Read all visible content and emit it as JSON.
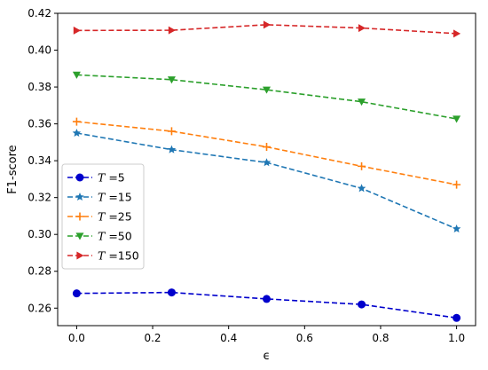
{
  "chart_data": {
    "type": "line",
    "title": "",
    "xlabel": "ϵ",
    "ylabel": "F1-score",
    "x": [
      0.0,
      0.25,
      0.5,
      0.75,
      1.0
    ],
    "xlim": [
      -0.05,
      1.05
    ],
    "ylim": [
      0.2505,
      0.42
    ],
    "xticks": [
      0.0,
      0.2,
      0.4,
      0.6,
      0.8,
      1.0
    ],
    "xtick_labels": [
      "0.0",
      "0.2",
      "0.4",
      "0.6",
      "0.8",
      "1.0"
    ],
    "yticks": [
      0.26,
      0.28,
      0.3,
      0.32,
      0.34,
      0.36,
      0.38,
      0.4,
      0.42
    ],
    "ytick_labels": [
      "0.26",
      "0.28",
      "0.30",
      "0.32",
      "0.34",
      "0.36",
      "0.38",
      "0.40",
      "0.42"
    ],
    "grid": false,
    "legend_position": "center-left",
    "series": [
      {
        "name": "=5",
        "legend_symbol": "T",
        "values": [
          0.268,
          0.2685,
          0.265,
          0.262,
          0.2547
        ],
        "color": "#0000cc",
        "marker": "circle"
      },
      {
        "name": "=15",
        "legend_symbol": "T",
        "values": [
          0.355,
          0.346,
          0.339,
          0.325,
          0.303
        ],
        "color": "#1f77b4",
        "marker": "star"
      },
      {
        "name": "=25",
        "legend_symbol": "T",
        "values": [
          0.3612,
          0.356,
          0.3475,
          0.337,
          0.327
        ],
        "color": "#ff7f0e",
        "marker": "plus"
      },
      {
        "name": "=50",
        "legend_symbol": "T",
        "values": [
          0.3866,
          0.384,
          0.3785,
          0.372,
          0.3627
        ],
        "color": "#2ca02c",
        "marker": "triangle-down"
      },
      {
        "name": "=150",
        "legend_symbol": "T",
        "values": [
          0.4107,
          0.4108,
          0.4138,
          0.412,
          0.409
        ],
        "color": "#d62728",
        "marker": "triangle-right"
      }
    ]
  }
}
